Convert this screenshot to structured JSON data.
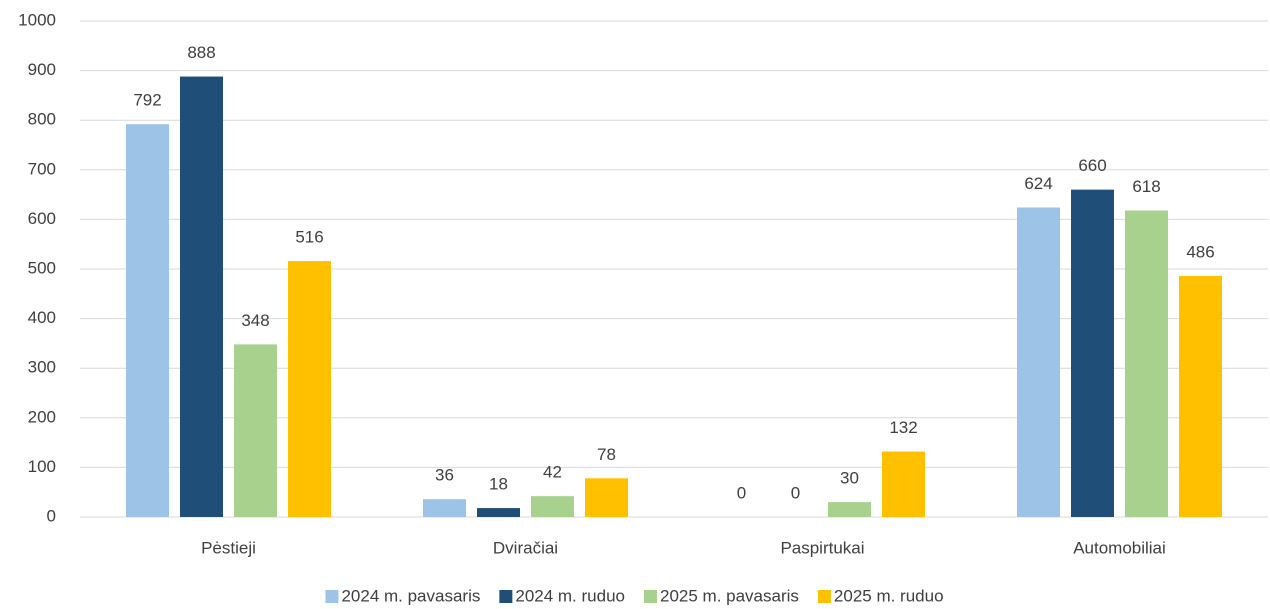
{
  "chart_data": {
    "type": "bar",
    "categories": [
      "Pėstieji",
      "Dviračiai",
      "Paspirtukai",
      "Automobiliai"
    ],
    "series": [
      {
        "name": "2024 m. pavasaris",
        "color": "#9dc3e6",
        "values": [
          792,
          36,
          0,
          624
        ]
      },
      {
        "name": "2024 m. ruduo",
        "color": "#1f4e79",
        "values": [
          888,
          18,
          0,
          660
        ]
      },
      {
        "name": "2025 m. pavasaris",
        "color": "#a9d18e",
        "values": [
          348,
          42,
          30,
          618
        ]
      },
      {
        "name": "2025 m. ruduo",
        "color": "#ffc000",
        "values": [
          516,
          78,
          132,
          486
        ]
      }
    ],
    "ylim": [
      0,
      1000
    ],
    "yticks": [
      0,
      100,
      200,
      300,
      400,
      500,
      600,
      700,
      800,
      900,
      1000
    ],
    "grid": true,
    "legend": "bottom"
  }
}
